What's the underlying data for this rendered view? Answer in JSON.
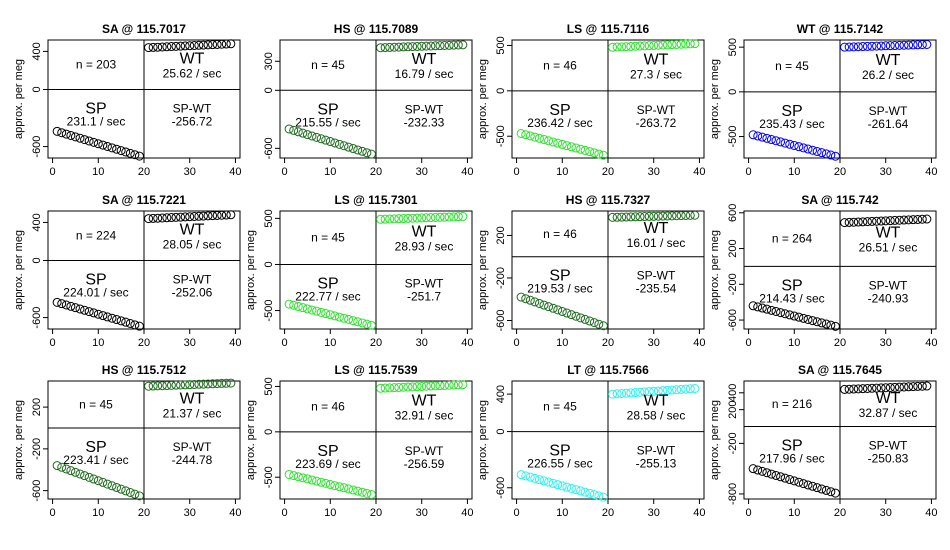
{
  "chart_data": [
    {
      "type": "scatter",
      "title": "SA @ 115.7017",
      "ylabel": "approx. per meg",
      "xticks": [
        "0",
        "10",
        "20",
        "30",
        "40"
      ],
      "yticks": [
        "-600",
        "0",
        "400"
      ],
      "xlim": [
        -1,
        41
      ],
      "ylim": [
        -720,
        520
      ],
      "color": "#000000",
      "n": "n = 203",
      "wt_label": "WT",
      "wt_rate": "25.62 / sec",
      "sp_label": "SP",
      "sp_rate": "231.1 / sec",
      "spwt_label": "SP-WT",
      "spwt_value": "-256.72",
      "sp_start": -440,
      "sp_end": -700,
      "wt_start": 440,
      "wt_end": 480
    },
    {
      "type": "scatter",
      "title": "HS @ 115.7089",
      "ylabel": "",
      "xticks": [
        "0",
        "10",
        "20",
        "30",
        "40"
      ],
      "yticks": [
        "-600",
        "0",
        "300"
      ],
      "xlim": [
        -1,
        41
      ],
      "ylim": [
        -700,
        520
      ],
      "color": "#1e6b1e",
      "n": "n = 45",
      "wt_label": "WT",
      "wt_rate": "16.79 / sec",
      "sp_label": "SP",
      "sp_rate": "215.55 / sec",
      "spwt_label": "SP-WT",
      "spwt_value": "-232.33",
      "sp_start": -400,
      "sp_end": -660,
      "wt_start": 440,
      "wt_end": 470
    },
    {
      "type": "scatter",
      "title": "LS @ 115.7116",
      "ylabel": "approx. per meg",
      "xticks": [
        "0",
        "10",
        "20",
        "30",
        "40"
      ],
      "yticks": [
        "-500",
        "0",
        "500"
      ],
      "xlim": [
        -1,
        41
      ],
      "ylim": [
        -740,
        560
      ],
      "color": "#33dd33",
      "n": "n = 46",
      "wt_label": "WT",
      "wt_rate": "27.3 / sec",
      "sp_label": "SP",
      "sp_rate": "236.42 / sec",
      "spwt_label": "SP-WT",
      "spwt_value": "-263.72",
      "sp_start": -470,
      "sp_end": -710,
      "wt_start": 480,
      "wt_end": 520
    },
    {
      "type": "scatter",
      "title": "WT @ 115.7142",
      "ylabel": "approx. per meg",
      "xticks": [
        "0",
        "10",
        "20",
        "30",
        "40"
      ],
      "yticks": [
        "-500",
        "0",
        "500"
      ],
      "xlim": [
        -1,
        41
      ],
      "ylim": [
        -740,
        580
      ],
      "color": "#0000ee",
      "n": "n = 45",
      "wt_label": "WT",
      "wt_rate": "26.2 / sec",
      "sp_label": "SP",
      "sp_rate": "235.43 / sec",
      "spwt_label": "SP-WT",
      "spwt_value": "-261.64",
      "sp_start": -480,
      "sp_end": -720,
      "wt_start": 500,
      "wt_end": 530
    },
    {
      "type": "scatter",
      "title": "SA @ 115.7221",
      "ylabel": "approx. per meg",
      "xticks": [
        "0",
        "10",
        "20",
        "30",
        "40"
      ],
      "yticks": [
        "-600",
        "0",
        "400"
      ],
      "xlim": [
        -1,
        41
      ],
      "ylim": [
        -720,
        520
      ],
      "color": "#000000",
      "n": "n = 224",
      "wt_label": "WT",
      "wt_rate": "28.05 / sec",
      "sp_label": "SP",
      "sp_rate": "224.01 / sec",
      "spwt_label": "SP-WT",
      "spwt_value": "-252.06",
      "sp_start": -440,
      "sp_end": -690,
      "wt_start": 440,
      "wt_end": 480
    },
    {
      "type": "scatter",
      "title": "LS @ 115.7301",
      "ylabel": "approx. per meg",
      "xticks": [
        "0",
        "10",
        "20",
        "30",
        "40"
      ],
      "yticks": [
        "-500",
        "0",
        "500"
      ],
      "xlim": [
        -1,
        41
      ],
      "ylim": [
        -700,
        580
      ],
      "color": "#33dd33",
      "n": "n = 45",
      "wt_label": "WT",
      "wt_rate": "28.93 / sec",
      "sp_label": "SP",
      "sp_rate": "222.77 / sec",
      "spwt_label": "SP-WT",
      "spwt_value": "-251.7",
      "sp_start": -430,
      "sp_end": -660,
      "wt_start": 490,
      "wt_end": 520
    },
    {
      "type": "scatter",
      "title": "HS @ 115.7327",
      "ylabel": "approx. per meg",
      "xticks": [
        "0",
        "10",
        "20",
        "30",
        "40"
      ],
      "yticks": [
        "-600",
        "-200",
        "200"
      ],
      "xlim": [
        -1,
        41
      ],
      "ylim": [
        -680,
        430
      ],
      "color": "#1e6b1e",
      "n": "n = 46",
      "wt_label": "WT",
      "wt_rate": "16.01 / sec",
      "sp_label": "SP",
      "sp_rate": "219.53 / sec",
      "spwt_label": "SP-WT",
      "spwt_value": "-235.54",
      "sp_start": -380,
      "sp_end": -650,
      "wt_start": 370,
      "wt_end": 390
    },
    {
      "type": "scatter",
      "title": "SA @ 115.742",
      "ylabel": "approx. per meg",
      "xticks": [
        "0",
        "10",
        "20",
        "30",
        "40"
      ],
      "yticks": [
        "-600",
        "-200",
        "200",
        "600"
      ],
      "xlim": [
        -1,
        41
      ],
      "ylim": [
        -700,
        620
      ],
      "color": "#000000",
      "n": "n = 264",
      "wt_label": "WT",
      "wt_rate": "26.51 / sec",
      "sp_label": "SP",
      "sp_rate": "214.43 / sec",
      "spwt_label": "SP-WT",
      "spwt_value": "-240.93",
      "sp_start": -440,
      "sp_end": -670,
      "wt_start": 490,
      "wt_end": 530
    },
    {
      "type": "scatter",
      "title": "HS @ 115.7512",
      "ylabel": "approx. per meg",
      "xticks": [
        "0",
        "10",
        "20",
        "30",
        "40"
      ],
      "yticks": [
        "-600",
        "-200",
        "200"
      ],
      "xlim": [
        -1,
        41
      ],
      "ylim": [
        -680,
        450
      ],
      "color": "#1e6b1e",
      "n": "n = 45",
      "wt_label": "WT",
      "wt_rate": "21.37 / sec",
      "sp_label": "SP",
      "sp_rate": "223.41 / sec",
      "spwt_label": "SP-WT",
      "spwt_value": "-244.78",
      "sp_start": -360,
      "sp_end": -650,
      "wt_start": 400,
      "wt_end": 430
    },
    {
      "type": "scatter",
      "title": "LS @ 115.7539",
      "ylabel": "approx. per meg",
      "xticks": [
        "0",
        "10",
        "20",
        "30",
        "40"
      ],
      "yticks": [
        "-500",
        "0",
        "500"
      ],
      "xlim": [
        -1,
        41
      ],
      "ylim": [
        -740,
        560
      ],
      "color": "#33dd33",
      "n": "n = 46",
      "wt_label": "WT",
      "wt_rate": "32.91 / sec",
      "sp_label": "SP",
      "sp_rate": "223.69 / sec",
      "spwt_label": "SP-WT",
      "spwt_value": "-256.59",
      "sp_start": -470,
      "sp_end": -690,
      "wt_start": 480,
      "wt_end": 520
    },
    {
      "type": "scatter",
      "title": "LT @ 115.7566",
      "ylabel": "approx. per meg",
      "xticks": [
        "0",
        "10",
        "20",
        "30",
        "40"
      ],
      "yticks": [
        "-600",
        "0",
        "400"
      ],
      "xlim": [
        -1,
        41
      ],
      "ylim": [
        -720,
        540
      ],
      "color": "#33eeee",
      "n": "n = 45",
      "wt_label": "WT",
      "wt_rate": "28.58 / sec",
      "sp_label": "SP",
      "sp_rate": "226.55 / sec",
      "spwt_label": "SP-WT",
      "spwt_value": "-255.13",
      "sp_start": -460,
      "sp_end": -700,
      "wt_start": 400,
      "wt_end": 460
    },
    {
      "type": "scatter",
      "title": "SA @ 115.7645",
      "ylabel": "approx. per meg",
      "xticks": [
        "0",
        "10",
        "20",
        "30",
        "40"
      ],
      "yticks": [
        "-800",
        "-200",
        "200",
        "400"
      ],
      "xlim": [
        -1,
        41
      ],
      "ylim": [
        -860,
        540
      ],
      "color": "#000000",
      "n": "n = 216",
      "wt_label": "WT",
      "wt_rate": "32.87 / sec",
      "sp_label": "SP",
      "sp_rate": "217.96 / sec",
      "spwt_label": "SP-WT",
      "spwt_value": "-250.83",
      "sp_start": -500,
      "sp_end": -790,
      "wt_start": 440,
      "wt_end": 480
    }
  ]
}
